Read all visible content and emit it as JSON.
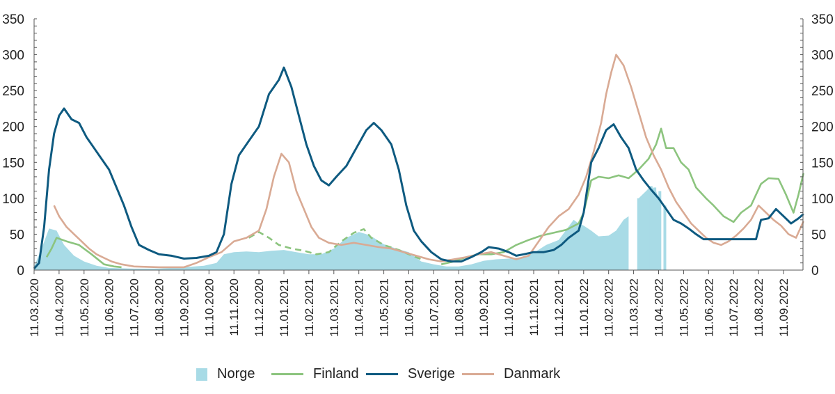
{
  "chart_data": {
    "type": "line",
    "title": "",
    "xlabel": "",
    "ylabel": "",
    "ylim": [
      0,
      350
    ],
    "y_ticks": [
      0,
      50,
      100,
      150,
      200,
      250,
      300,
      350
    ],
    "y_tick_labels": [
      "0",
      "50",
      "100",
      "150",
      "200",
      "250",
      "300",
      "350"
    ],
    "y_axes": "left and right (mirrored)",
    "x_tick_labels": [
      "11.03.2020",
      "11.04.2020",
      "11.05.2020",
      "11.06.2020",
      "11.07.2020",
      "11.08.2020",
      "11.09.2020",
      "11.10.2020",
      "11.11.2020",
      "11.12.2020",
      "11.01.2021",
      "11.02.2021",
      "11.03.2021",
      "11.04.2021",
      "11.05.2021",
      "11.06.2021",
      "11.07.2021",
      "11.08.2021",
      "11.09.2021",
      "11.10.2021",
      "11.11.2021",
      "11.12.2021",
      "11.01.2022",
      "11.02.2022",
      "11.03.2022",
      "11.04.2022",
      "11.05.2022",
      "11.06.2022",
      "11.07.2022",
      "11.08.2022",
      "11.09.2022"
    ],
    "x_unit": "months since 11.03.2020",
    "x_range": [
      0,
      30.8
    ],
    "grid": false,
    "legend_position": "bottom",
    "series": [
      {
        "name": "Norge",
        "style": "area",
        "color": "#a8dbe6",
        "points": [
          [
            0,
            5
          ],
          [
            0.3,
            30
          ],
          [
            0.6,
            58
          ],
          [
            0.9,
            55
          ],
          [
            1.2,
            35
          ],
          [
            1.6,
            20
          ],
          [
            2,
            12
          ],
          [
            2.5,
            6
          ],
          [
            3,
            3
          ],
          [
            4,
            2
          ],
          [
            5,
            2
          ],
          [
            6,
            4
          ],
          [
            6.8,
            6
          ],
          [
            7.3,
            10
          ],
          [
            7.6,
            22
          ],
          [
            8,
            25
          ],
          [
            8.5,
            26
          ],
          [
            9,
            25
          ],
          [
            9.5,
            27
          ],
          [
            10,
            28
          ],
          [
            10.5,
            25
          ],
          [
            11,
            22
          ],
          [
            11.5,
            22
          ],
          [
            12,
            30
          ],
          [
            12.5,
            45
          ],
          [
            13,
            53
          ],
          [
            13.3,
            50
          ],
          [
            13.6,
            45
          ],
          [
            14,
            36
          ],
          [
            14.5,
            30
          ],
          [
            15,
            25
          ],
          [
            15.5,
            12
          ],
          [
            16,
            8
          ],
          [
            16.5,
            5
          ],
          [
            17,
            5
          ],
          [
            17.5,
            8
          ],
          [
            18,
            13
          ],
          [
            18.5,
            15
          ],
          [
            19,
            16
          ],
          [
            19.5,
            18
          ],
          [
            20,
            24
          ],
          [
            20.5,
            35
          ],
          [
            21,
            42
          ],
          [
            21.3,
            56
          ],
          [
            21.6,
            70
          ],
          [
            21.8,
            65
          ],
          [
            22,
            62
          ],
          [
            22.3,
            55
          ],
          [
            22.6,
            47
          ],
          [
            23,
            48
          ],
          [
            23.3,
            55
          ],
          [
            23.6,
            70
          ],
          [
            23.8,
            75
          ],
          [
            24,
            0
          ],
          [
            24.2,
            100
          ],
          [
            24.5,
            110
          ],
          [
            24.7,
            117
          ],
          [
            24.9,
            110
          ],
          [
            25.1,
            90
          ],
          [
            25.3,
            0
          ]
        ]
      },
      {
        "name": "Finland",
        "style": "line (dashed Nov 2020 – Jun 2021)",
        "color": "#8cc47e",
        "points": [
          [
            0.5,
            18
          ],
          [
            0.7,
            30
          ],
          [
            0.9,
            45
          ],
          [
            1.3,
            40
          ],
          [
            1.8,
            35
          ],
          [
            2.3,
            22
          ],
          [
            2.8,
            8
          ],
          [
            3.2,
            5
          ],
          [
            3.5,
            4
          ]
        ],
        "dashed_points": [
          [
            8.6,
            45
          ],
          [
            9,
            53
          ],
          [
            9.4,
            45
          ],
          [
            9.8,
            35
          ],
          [
            10.3,
            30
          ],
          [
            10.8,
            27
          ],
          [
            11.3,
            22
          ],
          [
            11.8,
            25
          ],
          [
            12.3,
            40
          ],
          [
            12.8,
            52
          ],
          [
            13.2,
            57
          ],
          [
            13.5,
            45
          ],
          [
            14,
            35
          ],
          [
            14.6,
            28
          ],
          [
            15,
            22
          ],
          [
            15.5,
            15
          ]
        ],
        "points2": [
          [
            16.3,
            8
          ],
          [
            16.8,
            12
          ],
          [
            17.3,
            18
          ],
          [
            17.8,
            22
          ],
          [
            18.3,
            22
          ],
          [
            18.8,
            25
          ],
          [
            19.3,
            35
          ],
          [
            19.8,
            42
          ],
          [
            20.3,
            48
          ],
          [
            20.8,
            52
          ],
          [
            21.3,
            56
          ],
          [
            21.8,
            65
          ],
          [
            22,
            80
          ],
          [
            22.3,
            125
          ],
          [
            22.6,
            130
          ],
          [
            23,
            128
          ],
          [
            23.4,
            132
          ],
          [
            23.8,
            128
          ],
          [
            24.2,
            140
          ],
          [
            24.6,
            155
          ],
          [
            24.9,
            175
          ],
          [
            25.1,
            197
          ],
          [
            25.3,
            170
          ],
          [
            25.6,
            170
          ],
          [
            25.9,
            150
          ],
          [
            26.2,
            140
          ],
          [
            26.5,
            115
          ],
          [
            26.9,
            100
          ],
          [
            27.2,
            90
          ],
          [
            27.6,
            75
          ],
          [
            28,
            67
          ],
          [
            28.3,
            80
          ],
          [
            28.7,
            90
          ],
          [
            29.1,
            120
          ],
          [
            29.4,
            128
          ],
          [
            29.8,
            127
          ],
          [
            30.1,
            105
          ],
          [
            30.4,
            80
          ],
          [
            30.6,
            105
          ],
          [
            30.8,
            135
          ]
        ]
      },
      {
        "name": "Sverige",
        "style": "line",
        "color": "#0e5a80",
        "points": [
          [
            0,
            2
          ],
          [
            0.2,
            10
          ],
          [
            0.4,
            60
          ],
          [
            0.6,
            140
          ],
          [
            0.8,
            190
          ],
          [
            1.0,
            215
          ],
          [
            1.2,
            225
          ],
          [
            1.5,
            210
          ],
          [
            1.8,
            205
          ],
          [
            2.1,
            185
          ],
          [
            2.4,
            170
          ],
          [
            2.7,
            155
          ],
          [
            3.0,
            140
          ],
          [
            3.3,
            115
          ],
          [
            3.6,
            90
          ],
          [
            3.9,
            60
          ],
          [
            4.2,
            35
          ],
          [
            4.6,
            28
          ],
          [
            5.0,
            22
          ],
          [
            5.5,
            20
          ],
          [
            6.0,
            16
          ],
          [
            6.5,
            17
          ],
          [
            7.0,
            20
          ],
          [
            7.3,
            25
          ],
          [
            7.6,
            50
          ],
          [
            7.9,
            120
          ],
          [
            8.2,
            160
          ],
          [
            8.6,
            180
          ],
          [
            9.0,
            200
          ],
          [
            9.4,
            245
          ],
          [
            9.8,
            265
          ],
          [
            10.0,
            282
          ],
          [
            10.3,
            255
          ],
          [
            10.6,
            215
          ],
          [
            10.9,
            175
          ],
          [
            11.2,
            145
          ],
          [
            11.5,
            125
          ],
          [
            11.8,
            118
          ],
          [
            12.1,
            130
          ],
          [
            12.5,
            145
          ],
          [
            12.9,
            170
          ],
          [
            13.3,
            195
          ],
          [
            13.6,
            205
          ],
          [
            13.9,
            195
          ],
          [
            14.3,
            175
          ],
          [
            14.6,
            140
          ],
          [
            14.9,
            90
          ],
          [
            15.2,
            55
          ],
          [
            15.5,
            40
          ],
          [
            15.9,
            25
          ],
          [
            16.3,
            15
          ],
          [
            16.7,
            12
          ],
          [
            17.1,
            12
          ],
          [
            17.5,
            18
          ],
          [
            17.9,
            25
          ],
          [
            18.2,
            32
          ],
          [
            18.6,
            30
          ],
          [
            19.0,
            25
          ],
          [
            19.3,
            20
          ],
          [
            19.6,
            22
          ],
          [
            20.0,
            25
          ],
          [
            20.4,
            25
          ],
          [
            20.8,
            28
          ],
          [
            21.1,
            35
          ],
          [
            21.4,
            45
          ],
          [
            21.8,
            55
          ],
          [
            22.0,
            80
          ],
          [
            22.3,
            150
          ],
          [
            22.6,
            170
          ],
          [
            22.9,
            195
          ],
          [
            23.2,
            203
          ],
          [
            23.5,
            185
          ],
          [
            23.8,
            170
          ],
          [
            24.1,
            140
          ],
          [
            24.4,
            125
          ],
          [
            24.7,
            112
          ],
          [
            25.0,
            100
          ],
          [
            25.3,
            85
          ],
          [
            25.6,
            70
          ],
          [
            25.9,
            65
          ],
          [
            26.2,
            58
          ],
          [
            26.5,
            50
          ],
          [
            26.8,
            43
          ],
          [
            27.5,
            43
          ],
          [
            28.3,
            43
          ],
          [
            28.9,
            43
          ],
          [
            29.1,
            70
          ],
          [
            29.4,
            72
          ],
          [
            29.7,
            85
          ],
          [
            30.0,
            75
          ],
          [
            30.3,
            65
          ],
          [
            30.6,
            72
          ],
          [
            30.8,
            78
          ]
        ]
      },
      {
        "name": "Danmark",
        "style": "line",
        "color": "#d9aa94",
        "points": [
          [
            0.8,
            90
          ],
          [
            1.0,
            75
          ],
          [
            1.3,
            60
          ],
          [
            1.6,
            50
          ],
          [
            1.9,
            40
          ],
          [
            2.2,
            30
          ],
          [
            2.5,
            22
          ],
          [
            2.8,
            17
          ],
          [
            3.1,
            12
          ],
          [
            3.5,
            8
          ],
          [
            4,
            5
          ],
          [
            5,
            4
          ],
          [
            6,
            4
          ],
          [
            6.5,
            10
          ],
          [
            7.0,
            18
          ],
          [
            7.5,
            25
          ],
          [
            8.0,
            40
          ],
          [
            8.5,
            45
          ],
          [
            9.0,
            55
          ],
          [
            9.3,
            85
          ],
          [
            9.6,
            130
          ],
          [
            9.9,
            162
          ],
          [
            10.2,
            150
          ],
          [
            10.5,
            110
          ],
          [
            10.8,
            85
          ],
          [
            11.1,
            60
          ],
          [
            11.4,
            45
          ],
          [
            11.8,
            38
          ],
          [
            12.3,
            35
          ],
          [
            12.8,
            38
          ],
          [
            13.3,
            35
          ],
          [
            13.8,
            32
          ],
          [
            14.3,
            30
          ],
          [
            14.8,
            25
          ],
          [
            15.3,
            20
          ],
          [
            15.8,
            15
          ],
          [
            16.3,
            12
          ],
          [
            16.8,
            15
          ],
          [
            17.3,
            18
          ],
          [
            17.8,
            22
          ],
          [
            18.3,
            25
          ],
          [
            18.8,
            20
          ],
          [
            19.3,
            15
          ],
          [
            19.8,
            20
          ],
          [
            20.2,
            40
          ],
          [
            20.6,
            60
          ],
          [
            21.0,
            75
          ],
          [
            21.4,
            85
          ],
          [
            21.8,
            105
          ],
          [
            22.1,
            130
          ],
          [
            22.4,
            165
          ],
          [
            22.7,
            205
          ],
          [
            22.9,
            245
          ],
          [
            23.1,
            275
          ],
          [
            23.3,
            300
          ],
          [
            23.6,
            285
          ],
          [
            23.9,
            255
          ],
          [
            24.2,
            220
          ],
          [
            24.5,
            185
          ],
          [
            24.8,
            160
          ],
          [
            25.1,
            140
          ],
          [
            25.4,
            115
          ],
          [
            25.7,
            95
          ],
          [
            26.0,
            80
          ],
          [
            26.3,
            65
          ],
          [
            26.6,
            55
          ],
          [
            26.9,
            45
          ],
          [
            27.2,
            38
          ],
          [
            27.5,
            35
          ],
          [
            27.8,
            40
          ],
          [
            28.1,
            48
          ],
          [
            28.4,
            58
          ],
          [
            28.7,
            70
          ],
          [
            29.0,
            90
          ],
          [
            29.3,
            80
          ],
          [
            29.6,
            70
          ],
          [
            29.9,
            62
          ],
          [
            30.2,
            50
          ],
          [
            30.5,
            45
          ],
          [
            30.8,
            68
          ]
        ]
      }
    ]
  },
  "legend": {
    "items": [
      {
        "label": "Norge",
        "color": "#a8dbe6",
        "kind": "box"
      },
      {
        "label": "Finland",
        "color": "#8cc47e",
        "kind": "line"
      },
      {
        "label": "Sverige",
        "color": "#0e5a80",
        "kind": "line"
      },
      {
        "label": "Danmark",
        "color": "#d9aa94",
        "kind": "line"
      }
    ]
  }
}
